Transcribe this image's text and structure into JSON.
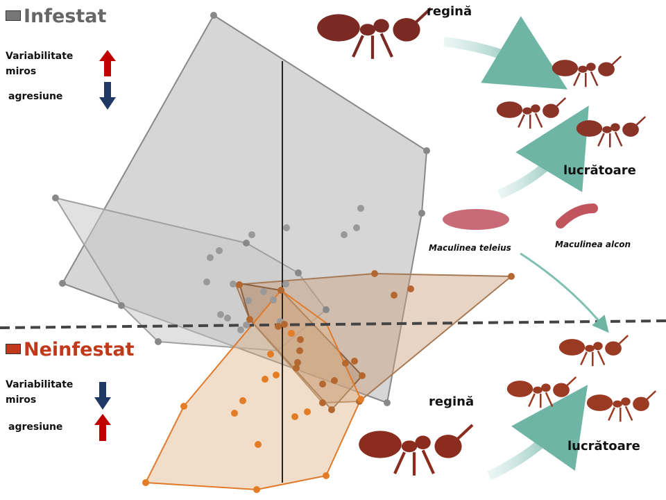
{
  "infestat": {
    "title": "Infestat",
    "variability": "Variabilitate miros",
    "aggression": "agresiune"
  },
  "neinfestat": {
    "title": "Neinfestat",
    "variability": "Variabilitate miros",
    "aggression": "agresiune"
  },
  "ants_top": {
    "queen": "regină",
    "workers": "lucrătoare"
  },
  "ants_bottom": {
    "queen": "regină",
    "workers": "lucrătoare"
  },
  "larvae": [
    "Maculinea teleius",
    "Maculinea alcon"
  ]
}
